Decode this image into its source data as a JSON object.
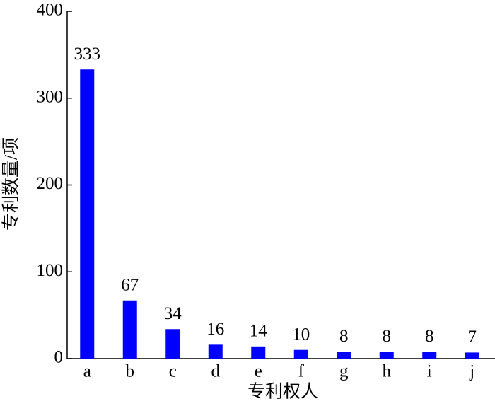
{
  "chart_data": {
    "type": "bar",
    "x_label": "专利权人",
    "y_label": "专利数量/项",
    "categories": [
      "a",
      "b",
      "c",
      "d",
      "e",
      "f",
      "g",
      "h",
      "i",
      "j"
    ],
    "values": [
      333,
      67,
      34,
      16,
      14,
      10,
      8,
      8,
      8,
      7
    ],
    "color": "#0000ff",
    "ylim": [
      0,
      400
    ],
    "yticks": [
      0,
      100,
      200,
      300,
      400
    ],
    "grid": false
  }
}
